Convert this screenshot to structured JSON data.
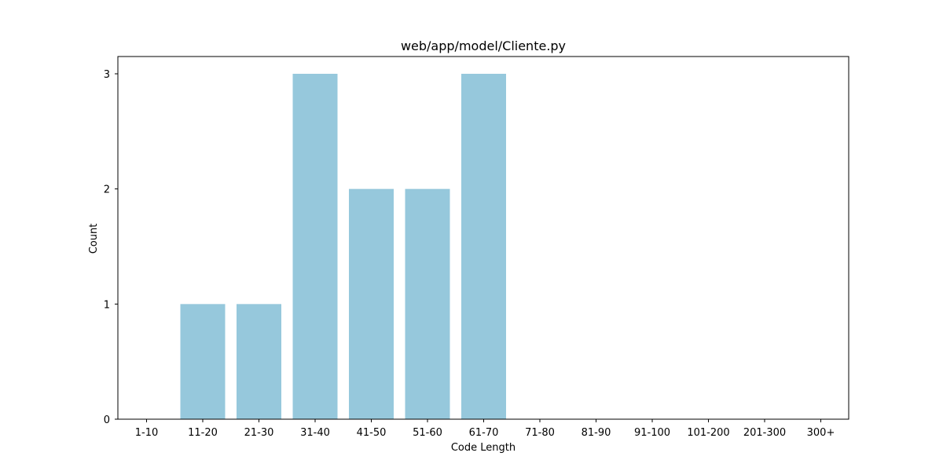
{
  "chart_data": {
    "type": "bar",
    "title": "web/app/model/Cliente.py",
    "xlabel": "Code Length",
    "ylabel": "Count",
    "categories": [
      "1-10",
      "11-20",
      "21-30",
      "31-40",
      "41-50",
      "51-60",
      "61-70",
      "71-80",
      "81-90",
      "91-100",
      "101-200",
      "201-300",
      "300+"
    ],
    "values": [
      0,
      1,
      1,
      3,
      2,
      2,
      3,
      0,
      0,
      0,
      0,
      0,
      0
    ],
    "ylim": [
      0,
      3.15
    ],
    "yticks": [
      0,
      1,
      2,
      3
    ],
    "bar_color": "#96c8dc",
    "grid": false,
    "legend": false
  }
}
